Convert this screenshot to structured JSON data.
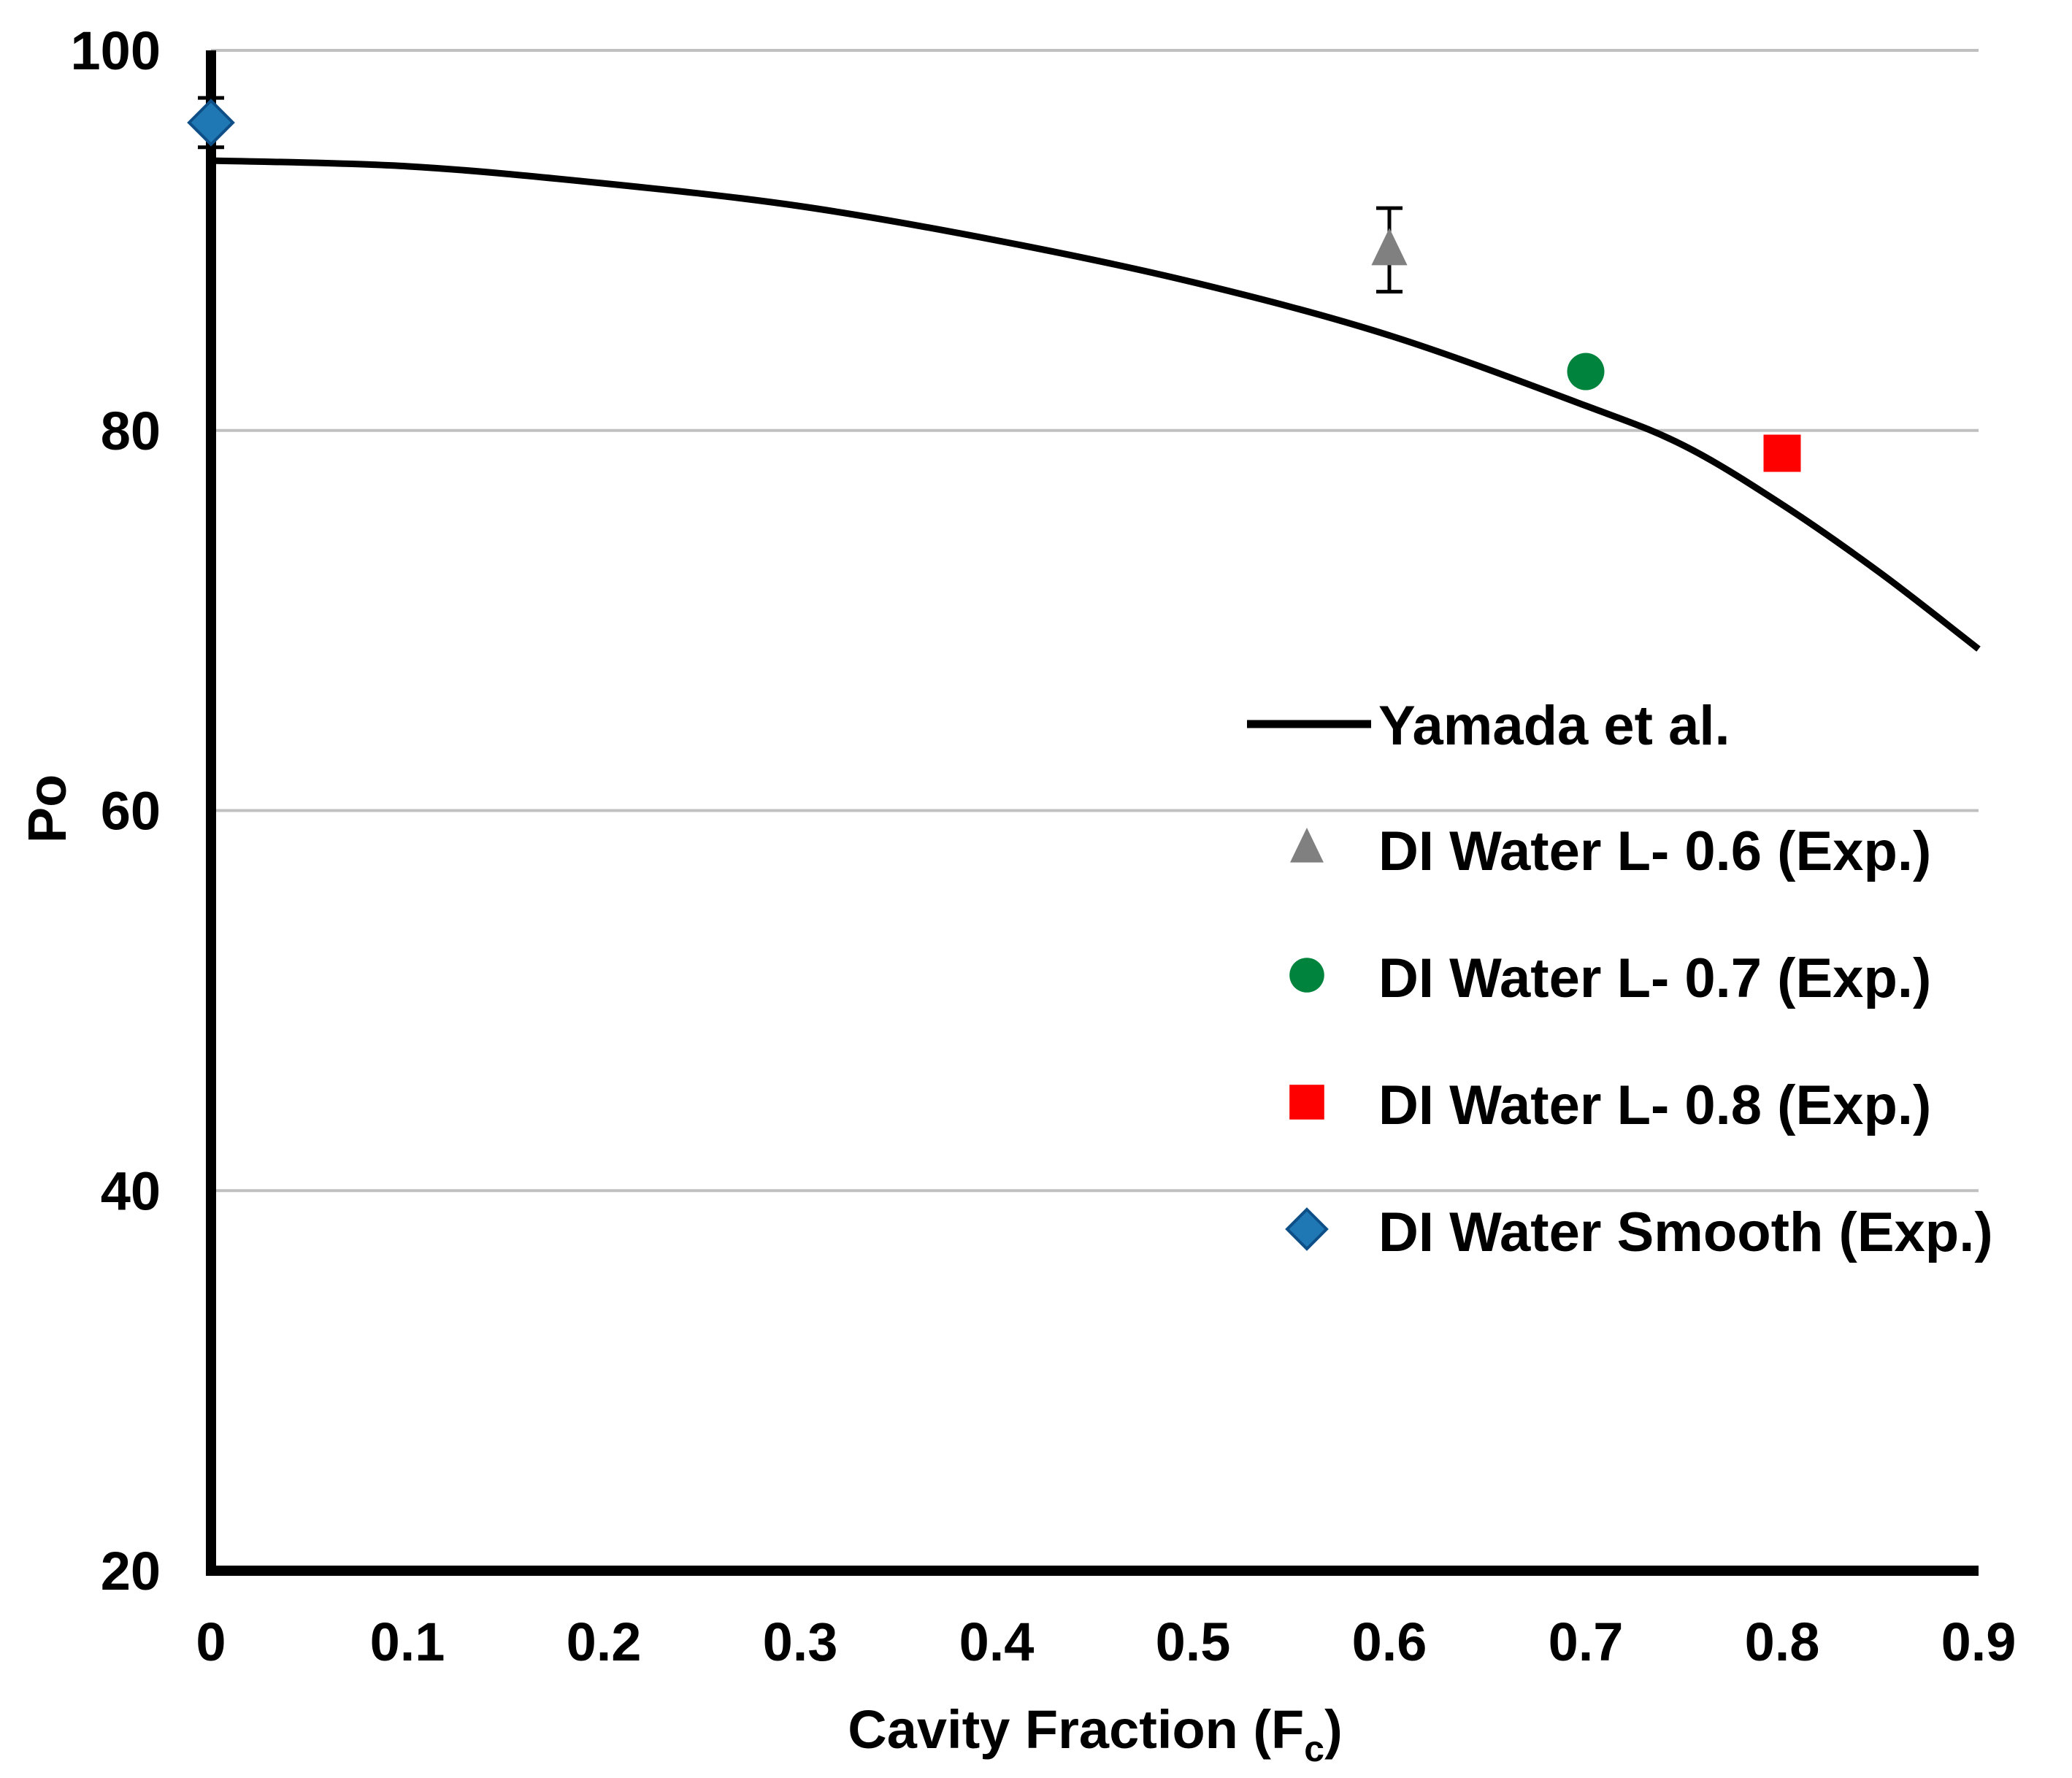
{
  "chart_data": {
    "type": "scatter",
    "title": "",
    "xlabel": "Cavity Fraction (F",
    "xlabel_subscript": "c",
    "xlabel_suffix": ")",
    "ylabel": "Po",
    "xlim": [
      0,
      0.9
    ],
    "ylim": [
      20,
      100
    ],
    "grid": true,
    "x_ticks": [
      "0",
      "0.1",
      "0.2",
      "0.3",
      "0.4",
      "0.5",
      "0.6",
      "0.7",
      "0.8",
      "0.9"
    ],
    "y_ticks": [
      "20",
      "40",
      "60",
      "80",
      "100"
    ],
    "legend_position": "right",
    "series": [
      {
        "name": "Yamada et al.",
        "kind": "line",
        "color": "#000000",
        "points": [
          [
            0,
            94.2
          ],
          [
            0.1,
            93.9
          ],
          [
            0.2,
            93.0
          ],
          [
            0.3,
            91.8
          ],
          [
            0.4,
            90.0
          ],
          [
            0.5,
            87.8
          ],
          [
            0.6,
            85.0
          ],
          [
            0.7,
            81.3
          ],
          [
            0.75,
            79.2
          ],
          [
            0.8,
            76.1
          ],
          [
            0.85,
            72.5
          ],
          [
            0.9,
            68.5
          ]
        ]
      },
      {
        "name": "DI Water L- 0.6 (Exp.)",
        "kind": "marker",
        "marker": "triangle",
        "color": "#808080",
        "points": [
          [
            0.6,
            89.5
          ]
        ],
        "error": [
          2.2
        ]
      },
      {
        "name": "DI Water L- 0.7 (Exp.)",
        "kind": "marker",
        "marker": "circle",
        "color": "#00843d",
        "points": [
          [
            0.7,
            83.1
          ]
        ],
        "error": [
          0
        ]
      },
      {
        "name": "DI Water L- 0.8 (Exp.)",
        "kind": "marker",
        "marker": "square",
        "color": "#ff0000",
        "points": [
          [
            0.8,
            78.8
          ]
        ],
        "error": [
          0
        ]
      },
      {
        "name": "DI Water Smooth (Exp.)",
        "kind": "marker",
        "marker": "diamond",
        "color": "#1f77b4",
        "points": [
          [
            0,
            96.2
          ]
        ],
        "error": [
          1.3
        ]
      }
    ]
  }
}
